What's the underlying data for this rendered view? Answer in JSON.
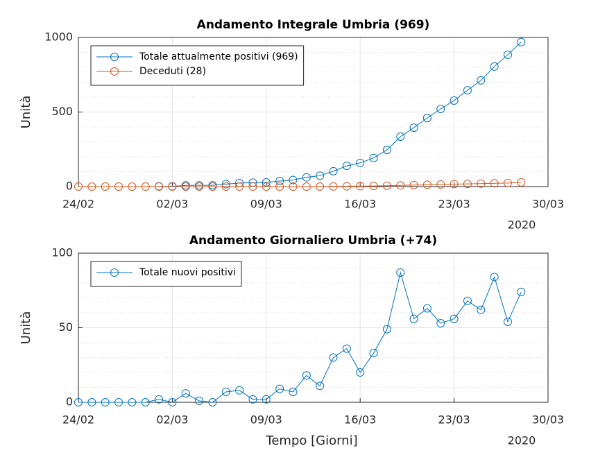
{
  "chart_data": [
    {
      "type": "line",
      "title": "Andamento Integrale Umbria (969)",
      "y_label": "Unità",
      "x_offset_label": "2020",
      "x": [
        "2020-02-24",
        "2020-02-25",
        "2020-02-26",
        "2020-02-27",
        "2020-02-28",
        "2020-02-29",
        "2020-03-01",
        "2020-03-02",
        "2020-03-03",
        "2020-03-04",
        "2020-03-05",
        "2020-03-06",
        "2020-03-07",
        "2020-03-08",
        "2020-03-09",
        "2020-03-10",
        "2020-03-11",
        "2020-03-12",
        "2020-03-13",
        "2020-03-14",
        "2020-03-15",
        "2020-03-16",
        "2020-03-17",
        "2020-03-18",
        "2020-03-19",
        "2020-03-20",
        "2020-03-21",
        "2020-03-22",
        "2020-03-23",
        "2020-03-24",
        "2020-03-25",
        "2020-03-26",
        "2020-03-27",
        "2020-03-28"
      ],
      "series": [
        {
          "name": "Totale attualmente positivi (969)",
          "color": "#0072bd",
          "values": [
            null,
            null,
            null,
            null,
            null,
            null,
            2,
            2,
            8,
            9,
            9,
            16,
            24,
            26,
            28,
            37,
            44,
            62,
            73,
            103,
            139,
            159,
            192,
            246,
            335,
            395,
            460,
            521,
            577,
            646,
            712,
            805,
            884,
            969
          ]
        },
        {
          "name": "Deceduti (28)",
          "color": "#d95319",
          "values": [
            0,
            0,
            0,
            0,
            0,
            0,
            0,
            0,
            0,
            0,
            0,
            0,
            0,
            0,
            0,
            0,
            0,
            0,
            0,
            1,
            2,
            3,
            4,
            6,
            8,
            10,
            12,
            14,
            16,
            18,
            20,
            22,
            24,
            28
          ]
        }
      ],
      "xlim": [
        "2020-02-24",
        "2020-03-30"
      ],
      "xticks": [
        {
          "value": "2020-02-24",
          "label": "24/02"
        },
        {
          "value": "2020-03-02",
          "label": "02/03"
        },
        {
          "value": "2020-03-09",
          "label": "09/03"
        },
        {
          "value": "2020-03-16",
          "label": "16/03"
        },
        {
          "value": "2020-03-23",
          "label": "23/03"
        },
        {
          "value": "2020-03-30",
          "label": "30/03"
        }
      ],
      "ylim": [
        0,
        1000
      ],
      "yticks": [
        0,
        500,
        1000
      ],
      "grid": true,
      "minor_grid": true,
      "legend": "northwest"
    },
    {
      "type": "line",
      "title": "Andamento Giornaliero Umbria (+74)",
      "y_label": "Unità",
      "x_label": "Tempo [Giorni]",
      "x_offset_label": "2020",
      "x": [
        "2020-02-24",
        "2020-02-25",
        "2020-02-26",
        "2020-02-27",
        "2020-02-28",
        "2020-02-29",
        "2020-03-01",
        "2020-03-02",
        "2020-03-03",
        "2020-03-04",
        "2020-03-05",
        "2020-03-06",
        "2020-03-07",
        "2020-03-08",
        "2020-03-09",
        "2020-03-10",
        "2020-03-11",
        "2020-03-12",
        "2020-03-13",
        "2020-03-14",
        "2020-03-15",
        "2020-03-16",
        "2020-03-17",
        "2020-03-18",
        "2020-03-19",
        "2020-03-20",
        "2020-03-21",
        "2020-03-22",
        "2020-03-23",
        "2020-03-24",
        "2020-03-25",
        "2020-03-26",
        "2020-03-27",
        "2020-03-28"
      ],
      "series": [
        {
          "name": "Totale nuovi positivi",
          "color": "#0072bd",
          "values": [
            0,
            0,
            0,
            0,
            0,
            0,
            2,
            0,
            6,
            1,
            0,
            7,
            8,
            2,
            2,
            9,
            7,
            18,
            11,
            30,
            36,
            20,
            33,
            49,
            87,
            56,
            63,
            53,
            56,
            68,
            62,
            84,
            54,
            74
          ]
        }
      ],
      "xlim": [
        "2020-02-24",
        "2020-03-30"
      ],
      "xticks": [
        {
          "value": "2020-02-24",
          "label": "24/02"
        },
        {
          "value": "2020-03-02",
          "label": "02/03"
        },
        {
          "value": "2020-03-09",
          "label": "09/03"
        },
        {
          "value": "2020-03-16",
          "label": "16/03"
        },
        {
          "value": "2020-03-23",
          "label": "23/03"
        },
        {
          "value": "2020-03-30",
          "label": "30/03"
        }
      ],
      "ylim": [
        0,
        100
      ],
      "yticks": [
        0,
        50,
        100
      ],
      "grid": true,
      "minor_grid": true,
      "legend": "northwest"
    }
  ]
}
